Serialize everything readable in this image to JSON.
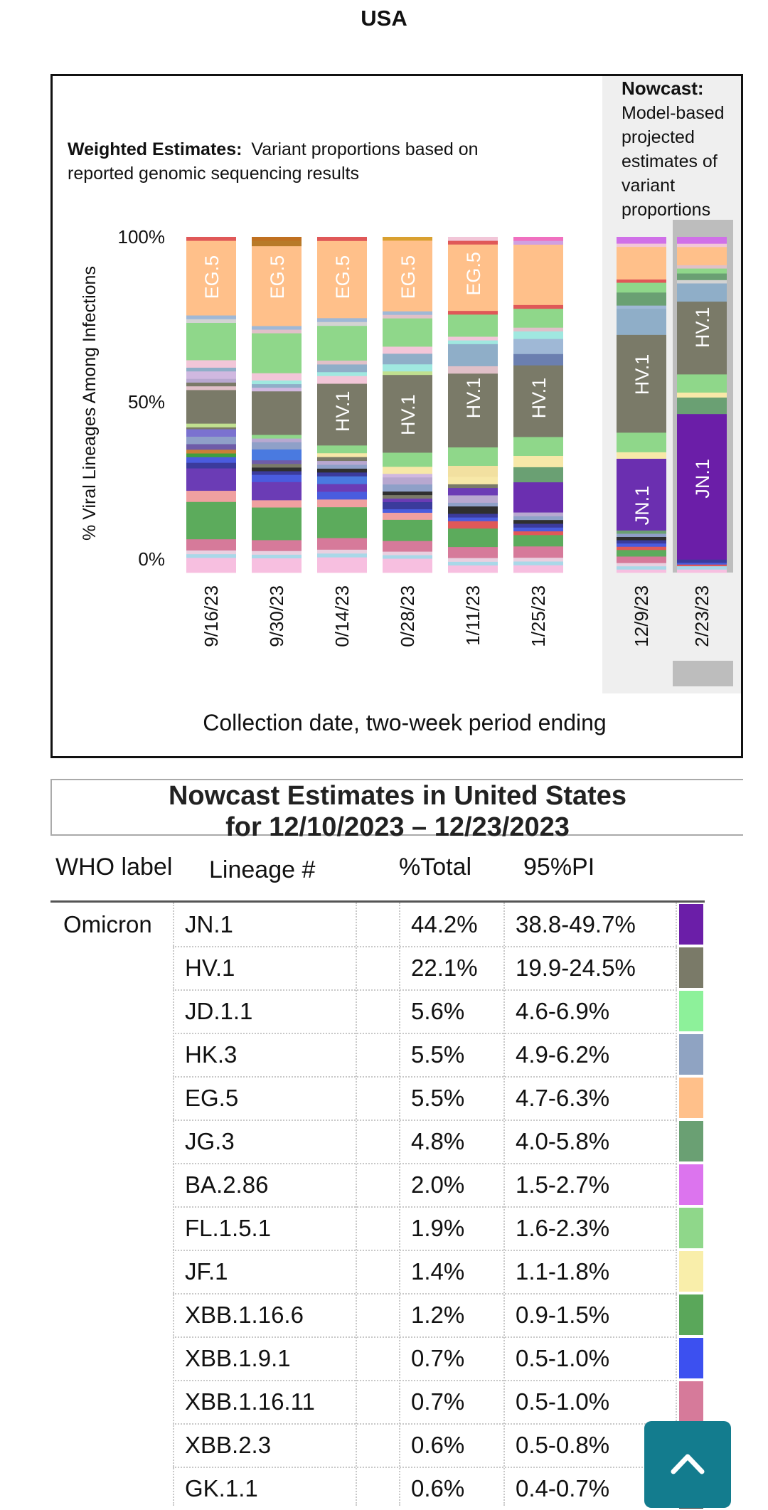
{
  "page": {
    "title": "USA"
  },
  "chart_data": {
    "type": "bar",
    "stacked": true,
    "weighted_heading_bold": "Weighted Estimates:",
    "weighted_heading_text_line1": "Variant proportions based on",
    "weighted_heading_text_line2": "reported genomic sequencing results",
    "nowcast_heading_bold": "Nowcast:",
    "nowcast_heading_lines": [
      "Model-based",
      "projected",
      "estimates of",
      "variant",
      "proportions"
    ],
    "ylabel": "% Viral Lineages Among Infections",
    "xlabel": "Collection date, two-week period ending",
    "yticks": [
      "100%",
      "50%",
      "0%"
    ],
    "ylim": [
      0,
      100
    ],
    "categories": [
      "9/16/23",
      "9/30/23",
      "0/14/23",
      "0/28/23",
      "1/11/23",
      "1/25/23",
      "12/9/23",
      "2/23/23"
    ],
    "nowcast_categories": [
      "12/9/23",
      "2/23/23"
    ],
    "bars": [
      [
        [
          4,
          "#f7bfe0"
        ],
        [
          1,
          "#a9d8e8"
        ],
        [
          1,
          "#e9d0e0"
        ],
        [
          3,
          "#d67a9a"
        ],
        [
          10,
          "#5cab5c"
        ],
        [
          3,
          "#f0a0a0"
        ],
        [
          6,
          "#6b3cb5"
        ],
        [
          1.5,
          "#3b3b9c"
        ],
        [
          1.5,
          "#4a5cde"
        ],
        [
          1,
          "#3f9f3f"
        ],
        [
          1,
          "#c97f36"
        ],
        [
          1.5,
          "#6e5ca8"
        ],
        [
          2,
          "#8fa0c8"
        ],
        [
          2,
          "#7b72d0"
        ],
        [
          0.5,
          "#7a7a68"
        ],
        [
          1,
          "#c0e090"
        ],
        [
          9,
          "#7a7a68"
        ],
        [
          1,
          "#e0c0c8"
        ],
        [
          1,
          "#7a7a68"
        ],
        [
          1,
          "#b8a8d0"
        ],
        [
          2,
          "#d0b8e0"
        ],
        [
          1,
          "#8faec8"
        ],
        [
          2,
          "#f2c6d8"
        ],
        [
          10,
          "#8fd78a"
        ],
        [
          1,
          "#d3d3d3"
        ],
        [
          1,
          "#9fb8d6"
        ],
        [
          20,
          "#ffc08a"
        ],
        [
          1,
          "#e05858"
        ]
      ],
      [
        [
          4,
          "#f7bfe0"
        ],
        [
          1,
          "#a9d8e8"
        ],
        [
          1,
          "#e9d0e0"
        ],
        [
          3,
          "#d67a9a"
        ],
        [
          9,
          "#5cab5c"
        ],
        [
          2,
          "#f0a0a0"
        ],
        [
          5,
          "#6b3cb5"
        ],
        [
          2,
          "#4a5cde"
        ],
        [
          1,
          "#3b3b9c"
        ],
        [
          1,
          "#2f2f2f"
        ],
        [
          1,
          "#7a7a68"
        ],
        [
          1,
          "#6e5ca8"
        ],
        [
          3,
          "#4a7ae0"
        ],
        [
          2,
          "#8fa0c8"
        ],
        [
          1,
          "#b8a8d0"
        ],
        [
          1,
          "#8fd78a"
        ],
        [
          12,
          "#7a7a68"
        ],
        [
          1,
          "#d0b8e0"
        ],
        [
          1,
          "#8faec8"
        ],
        [
          1,
          "#a0e8e0"
        ],
        [
          2,
          "#f2c6d8"
        ],
        [
          11,
          "#8fd78a"
        ],
        [
          1,
          "#e0c0c8"
        ],
        [
          1,
          "#9fb8d6"
        ],
        [
          22,
          "#ffc08a"
        ],
        [
          1.5,
          "#b87a28"
        ],
        [
          1,
          "#c07020"
        ]
      ],
      [
        [
          4,
          "#f7bfe0"
        ],
        [
          1,
          "#a9d8e8"
        ],
        [
          1,
          "#e9d0e0"
        ],
        [
          3,
          "#d67a9a"
        ],
        [
          8,
          "#5cab5c"
        ],
        [
          2,
          "#f0a0a0"
        ],
        [
          2,
          "#4a5cde"
        ],
        [
          2,
          "#6b3cb5"
        ],
        [
          2,
          "#4a7ae0"
        ],
        [
          1,
          "#3b3b9c"
        ],
        [
          1,
          "#2f2f2f"
        ],
        [
          1,
          "#8fa0c8"
        ],
        [
          1,
          "#b8a8d0"
        ],
        [
          1,
          "#7a7a68"
        ],
        [
          1,
          "#f7e8a8"
        ],
        [
          2,
          "#8fd78a"
        ],
        [
          16,
          "#7a7a68"
        ],
        [
          2,
          "#f2c6d8"
        ],
        [
          1,
          "#a0e8e0"
        ],
        [
          2,
          "#8faec8"
        ],
        [
          1,
          "#e0c0c8"
        ],
        [
          9,
          "#8fd78a"
        ],
        [
          1,
          "#d3d3d3"
        ],
        [
          1,
          "#9fb8d6"
        ],
        [
          20,
          "#ffc08a"
        ],
        [
          1,
          "#e05858"
        ]
      ],
      [
        [
          4,
          "#f7bfe0"
        ],
        [
          1,
          "#a9d8e8"
        ],
        [
          1,
          "#e9d0e0"
        ],
        [
          3,
          "#d67a9a"
        ],
        [
          6,
          "#5cab5c"
        ],
        [
          2,
          "#f0a0a0"
        ],
        [
          1,
          "#4a5cde"
        ],
        [
          2,
          "#3b3b9c"
        ],
        [
          1,
          "#6b3cb5"
        ],
        [
          1,
          "#7a7a68"
        ],
        [
          1,
          "#2f2f2f"
        ],
        [
          2,
          "#8fa0c8"
        ],
        [
          2,
          "#b8a8d0"
        ],
        [
          1,
          "#d0b8e0"
        ],
        [
          2,
          "#f7e8a8"
        ],
        [
          4,
          "#8fd78a"
        ],
        [
          22,
          "#7a7a68"
        ],
        [
          1,
          "#c0e090"
        ],
        [
          2,
          "#a0e8e0"
        ],
        [
          3,
          "#8faec8"
        ],
        [
          2,
          "#f2c6d8"
        ],
        [
          8,
          "#8fd78a"
        ],
        [
          1,
          "#e0c0c8"
        ],
        [
          1,
          "#9fb8d6"
        ],
        [
          20,
          "#ffc08a"
        ],
        [
          1,
          "#d9a030"
        ]
      ],
      [
        [
          2,
          "#f7bfe0"
        ],
        [
          1,
          "#a9d8e8"
        ],
        [
          1,
          "#e9d0e0"
        ],
        [
          3,
          "#d67a9a"
        ],
        [
          5,
          "#5cab5c"
        ],
        [
          2,
          "#e05858"
        ],
        [
          1,
          "#4a5cde"
        ],
        [
          1,
          "#3b3b9c"
        ],
        [
          2,
          "#2f2f2f"
        ],
        [
          1,
          "#8fa0c8"
        ],
        [
          2,
          "#b8a8d0"
        ],
        [
          2,
          "#6b3cb5"
        ],
        [
          1,
          "#7a7a68"
        ],
        [
          2,
          "#f7e8a8"
        ],
        [
          3,
          "#f2e0a0"
        ],
        [
          5,
          "#8fd78a"
        ],
        [
          20,
          "#7a7a68"
        ],
        [
          2,
          "#e0c0c8"
        ],
        [
          6,
          "#8faec8"
        ],
        [
          1,
          "#a0e8e0"
        ],
        [
          1,
          "#f2c6d8"
        ],
        [
          6,
          "#8fd78a"
        ],
        [
          1,
          "#e05858"
        ],
        [
          18,
          "#ffc08a"
        ],
        [
          1,
          "#e05858"
        ],
        [
          1,
          "#f2c6d8"
        ]
      ],
      [
        [
          2,
          "#f7bfe0"
        ],
        [
          1,
          "#a9d8e8"
        ],
        [
          1,
          "#e9d0e0"
        ],
        [
          3,
          "#d67a9a"
        ],
        [
          3,
          "#5cab5c"
        ],
        [
          1,
          "#e05858"
        ],
        [
          1,
          "#4a5cde"
        ],
        [
          1,
          "#3b3b9c"
        ],
        [
          1,
          "#2f2f2f"
        ],
        [
          1,
          "#8fa0c8"
        ],
        [
          1,
          "#b8a8d0"
        ],
        [
          8,
          "#6b2fb0"
        ],
        [
          4,
          "#6aa073"
        ],
        [
          3,
          "#f7e8a8"
        ],
        [
          5,
          "#8fd78a"
        ],
        [
          19,
          "#7a7a68"
        ],
        [
          3,
          "#6b7fb0"
        ],
        [
          4,
          "#9fb8d6"
        ],
        [
          2,
          "#a0e8e0"
        ],
        [
          1,
          "#e0c0c8"
        ],
        [
          5,
          "#8fd78a"
        ],
        [
          1,
          "#e05858"
        ],
        [
          16,
          "#ffc08a"
        ],
        [
          1,
          "#d0a0e0"
        ],
        [
          1,
          "#f070c0"
        ]
      ],
      [
        [
          1,
          "#f7bfe0"
        ],
        [
          1,
          "#a9d8e8"
        ],
        [
          1,
          "#e9d0e0"
        ],
        [
          2,
          "#d67a9a"
        ],
        [
          2,
          "#5cab5c"
        ],
        [
          1,
          "#e05858"
        ],
        [
          1,
          "#4a5cde"
        ],
        [
          1,
          "#3b3b9c"
        ],
        [
          1,
          "#2f2f2f"
        ],
        [
          1,
          "#8fa0c8"
        ],
        [
          1,
          "#6aa073"
        ],
        [
          22,
          "#6b2fb0"
        ],
        [
          2,
          "#f7e8a8"
        ],
        [
          6,
          "#8fd78a"
        ],
        [
          30,
          "#7a7a68"
        ],
        [
          8,
          "#8faec8"
        ],
        [
          1,
          "#9fb8d6"
        ],
        [
          4,
          "#6aa073"
        ],
        [
          3,
          "#8fd78a"
        ],
        [
          1,
          "#e05858"
        ],
        [
          10,
          "#ffc08a"
        ],
        [
          1,
          "#f2c6d8"
        ],
        [
          2,
          "#d070e8"
        ]
      ],
      [
        [
          1,
          "#f7bfe0"
        ],
        [
          1,
          "#a9d8e8"
        ],
        [
          0.5,
          "#e05858"
        ],
        [
          0.5,
          "#4a5cde"
        ],
        [
          1,
          "#3b3b9c"
        ],
        [
          44,
          "#6b1ea8"
        ],
        [
          5,
          "#6aa073"
        ],
        [
          1.5,
          "#f7e8a8"
        ],
        [
          5.5,
          "#8fd78a"
        ],
        [
          22,
          "#7a7a68"
        ],
        [
          5.5,
          "#8faec8"
        ],
        [
          1,
          "#d3d3d3"
        ],
        [
          2,
          "#6aa073"
        ],
        [
          1.5,
          "#8fd78a"
        ],
        [
          1,
          "#e0c0c8"
        ],
        [
          5.5,
          "#ffc08a"
        ],
        [
          1,
          "#f2c6d8"
        ],
        [
          2,
          "#d070e8"
        ]
      ]
    ],
    "segment_labels": [
      {
        "bar": 0,
        "text": "EG.5",
        "at": 88
      },
      {
        "bar": 1,
        "text": "EG.5",
        "at": 88
      },
      {
        "bar": 2,
        "text": "EG.5",
        "at": 88
      },
      {
        "bar": 3,
        "text": "EG.5",
        "at": 88
      },
      {
        "bar": 4,
        "text": "EG.5",
        "at": 89
      },
      {
        "bar": 2,
        "text": "HV.1",
        "at": 48
      },
      {
        "bar": 3,
        "text": "HV.1",
        "at": 47
      },
      {
        "bar": 4,
        "text": "HV.1",
        "at": 52
      },
      {
        "bar": 5,
        "text": "HV.1",
        "at": 52
      },
      {
        "bar": 6,
        "text": "HV.1",
        "at": 59
      },
      {
        "bar": 6,
        "text": "JN.1",
        "at": 20
      },
      {
        "bar": 7,
        "text": "HV.1",
        "at": 73
      },
      {
        "bar": 7,
        "text": "JN.1",
        "at": 28
      }
    ]
  },
  "table": {
    "title_line1": "Nowcast Estimates in United States",
    "title_line2": "for 12/10/2023 – 12/23/2023",
    "headers": {
      "who": "WHO label",
      "lineage": "Lineage #",
      "total": "%Total",
      "pi": "95%PI"
    },
    "who_value": "Omicron",
    "rows": [
      {
        "lineage": "JN.1",
        "total": "44.2%",
        "pi": "38.8-49.7%",
        "color": "#6b1ea8"
      },
      {
        "lineage": "HV.1",
        "total": "22.1%",
        "pi": "19.9-24.5%",
        "color": "#7a7a68"
      },
      {
        "lineage": "JD.1.1",
        "total": "5.6%",
        "pi": "4.6-6.9%",
        "color": "#8df19a"
      },
      {
        "lineage": "HK.3",
        "total": "5.5%",
        "pi": "4.9-6.2%",
        "color": "#8fa3c2"
      },
      {
        "lineage": "EG.5",
        "total": "5.5%",
        "pi": "4.7-6.3%",
        "color": "#ffc08a"
      },
      {
        "lineage": "JG.3",
        "total": "4.8%",
        "pi": "4.0-5.8%",
        "color": "#6aa073"
      },
      {
        "lineage": "BA.2.86",
        "total": "2.0%",
        "pi": "1.5-2.7%",
        "color": "#dc74ee"
      },
      {
        "lineage": "FL.1.5.1",
        "total": "1.9%",
        "pi": "1.6-2.3%",
        "color": "#8fd78a"
      },
      {
        "lineage": "JF.1",
        "total": "1.4%",
        "pi": "1.1-1.8%",
        "color": "#f9eeaa"
      },
      {
        "lineage": "XBB.1.16.6",
        "total": "1.2%",
        "pi": "0.9-1.5%",
        "color": "#5aa75a"
      },
      {
        "lineage": "XBB.1.9.1",
        "total": "0.7%",
        "pi": "0.5-1.0%",
        "color": "#3c50f0"
      },
      {
        "lineage": "XBB.1.16.11",
        "total": "0.7%",
        "pi": "0.5-1.0%",
        "color": "#d67a9a"
      },
      {
        "lineage": "XBB.2.3",
        "total": "0.6%",
        "pi": "0.5-0.8%",
        "color": "#1f1f1f"
      },
      {
        "lineage": "GK.1.1",
        "total": "0.6%",
        "pi": "0.4-0.7%",
        "color": "#1f1f1f"
      }
    ]
  },
  "scroll_top": {
    "icon": "chevron-up-icon"
  }
}
